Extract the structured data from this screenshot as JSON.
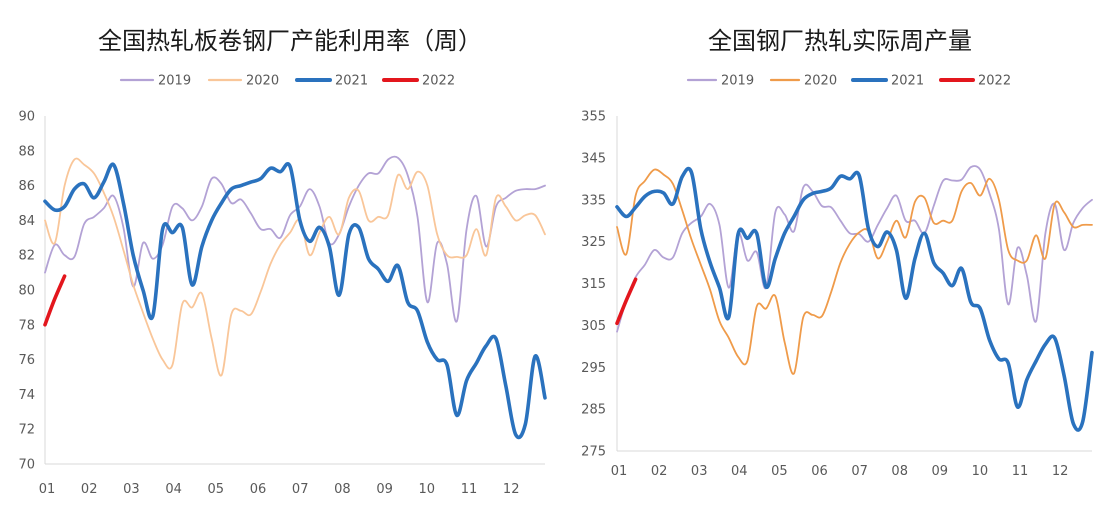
{
  "chart_data": [
    {
      "type": "line",
      "title": "全国热轧板卷钢厂产能利用率（周）",
      "xlabel": "",
      "ylabel": "",
      "x_ticks": [
        "01",
        "02",
        "03",
        "04",
        "05",
        "06",
        "07",
        "08",
        "09",
        "10",
        "11",
        "12"
      ],
      "y_ticks": [
        "90",
        "88",
        "86",
        "84",
        "82",
        "80",
        "78",
        "76",
        "74",
        "72",
        "70"
      ],
      "ylim": [
        70,
        90
      ],
      "grid": false,
      "legend": "top",
      "series": [
        {
          "name": "2019",
          "color": "#b3a2d5",
          "values": [
            81.0,
            82.6,
            82.0,
            81.9,
            83.8,
            84.2,
            84.7,
            85.4,
            83.6,
            80.2,
            82.7,
            81.8,
            82.6,
            84.8,
            84.7,
            84.0,
            84.8,
            86.4,
            86.1,
            85.0,
            85.2,
            84.4,
            83.5,
            83.5,
            83.0,
            84.3,
            84.8,
            85.8,
            84.8,
            82.7,
            83.2,
            84.8,
            86.0,
            86.7,
            86.7,
            87.5,
            87.6,
            86.6,
            84.2,
            79.3,
            82.7,
            81.5,
            78.2,
            83.5,
            85.4,
            82.5,
            84.8,
            85.3,
            85.7,
            85.8,
            85.8,
            86.0
          ]
        },
        {
          "name": "2020",
          "color": "#f9c699",
          "values": [
            84.0,
            82.7,
            86.0,
            87.5,
            87.2,
            86.7,
            85.6,
            84.2,
            82.3,
            80.3,
            78.7,
            77.2,
            76.0,
            75.7,
            79.2,
            79.0,
            79.8,
            77.2,
            75.1,
            78.6,
            78.8,
            78.6,
            79.9,
            81.5,
            82.6,
            83.3,
            84.0,
            82.0,
            83.3,
            84.2,
            83.2,
            85.3,
            85.7,
            84.0,
            84.2,
            84.3,
            86.6,
            85.8,
            86.8,
            86.0,
            83.2,
            82.0,
            81.9,
            82.0,
            83.5,
            82.0,
            85.3,
            84.8,
            84.0,
            84.3,
            84.3,
            83.2
          ]
        },
        {
          "name": "2021",
          "color": "#2a72be",
          "values": [
            85.1,
            84.6,
            84.8,
            85.8,
            86.1,
            85.3,
            86.2,
            87.2,
            85.0,
            82.0,
            80.0,
            78.5,
            83.5,
            83.3,
            83.6,
            80.3,
            82.5,
            84.0,
            85.0,
            85.8,
            86.0,
            86.2,
            86.4,
            87.0,
            86.8,
            87.1,
            84.0,
            82.8,
            83.6,
            82.5,
            79.7,
            83.2,
            83.6,
            81.8,
            81.2,
            80.5,
            81.4,
            79.3,
            78.8,
            77.0,
            76.0,
            75.7,
            72.8,
            74.8,
            75.8,
            76.8,
            77.2,
            74.5,
            71.7,
            72.3,
            76.2,
            73.8
          ]
        },
        {
          "name": "2022",
          "color": "#e3161d",
          "values": [
            78.0,
            79.5,
            80.8
          ]
        }
      ]
    },
    {
      "type": "line",
      "title": "全国钢厂热轧实际周产量",
      "xlabel": "",
      "ylabel": "",
      "x_ticks": [
        "01",
        "02",
        "03",
        "04",
        "05",
        "06",
        "07",
        "08",
        "09",
        "10",
        "11",
        "12"
      ],
      "y_ticks": [
        "355",
        "345",
        "335",
        "325",
        "315",
        "305",
        "295",
        "285",
        "275"
      ],
      "ylim": [
        275,
        355
      ],
      "grid": false,
      "legend": "top",
      "series": [
        {
          "name": "2019",
          "color": "#b3a2d5",
          "values": [
            303.5,
            311.0,
            316.5,
            319.5,
            323.0,
            321.2,
            321.2,
            327.0,
            329.5,
            331.0,
            334.0,
            329.0,
            314.0,
            327.0,
            320.5,
            322.5,
            314.0,
            332.0,
            331.5,
            327.5,
            338.0,
            337.0,
            333.5,
            333.2,
            330.0,
            327.0,
            326.8,
            325.0,
            329.0,
            333.0,
            336.0,
            330.0,
            330.0,
            327.0,
            333.5,
            339.5,
            339.6,
            339.8,
            342.8,
            342.2,
            336.5,
            328.0,
            310.0,
            323.5,
            317.0,
            306.0,
            327.0,
            334.0,
            323.0,
            329.5,
            333.0,
            335.0
          ]
        },
        {
          "name": "2020",
          "color": "#ef9b4a",
          "values": [
            328.5,
            322.0,
            336.0,
            339.5,
            342.2,
            341.0,
            338.8,
            332.5,
            325.5,
            319.5,
            313.5,
            306.0,
            302.0,
            297.5,
            296.5,
            309.5,
            309.0,
            312.0,
            301.0,
            293.5,
            307.0,
            307.5,
            307.2,
            313.0,
            320.0,
            324.5,
            327.2,
            327.5,
            321.0,
            325.0,
            330.0,
            326.0,
            334.5,
            335.5,
            329.5,
            330.0,
            330.0,
            337.0,
            339.0,
            336.0,
            340.0,
            335.0,
            323.0,
            320.5,
            320.5,
            326.5,
            321.0,
            334.0,
            332.0,
            328.5,
            329.0,
            329.0
          ]
        },
        {
          "name": "2021",
          "color": "#2a72be",
          "values": [
            333.3,
            331.0,
            333.2,
            335.8,
            337.0,
            336.6,
            334.0,
            340.5,
            341.5,
            328.0,
            320.0,
            314.0,
            307.0,
            326.8,
            325.8,
            327.0,
            314.2,
            321.0,
            327.0,
            331.0,
            335.0,
            336.5,
            337.0,
            337.8,
            340.6,
            340.0,
            340.8,
            328.0,
            323.8,
            327.3,
            323.0,
            311.5,
            321.0,
            327.0,
            320.0,
            317.5,
            314.5,
            318.6,
            310.5,
            309.0,
            301.5,
            297.0,
            296.0,
            285.5,
            292.0,
            296.5,
            300.5,
            302.0,
            293.0,
            281.5,
            282.0,
            298.5
          ]
        },
        {
          "name": "2022",
          "color": "#e3161d",
          "values": [
            305.5,
            311.0,
            316.0
          ]
        }
      ]
    }
  ]
}
